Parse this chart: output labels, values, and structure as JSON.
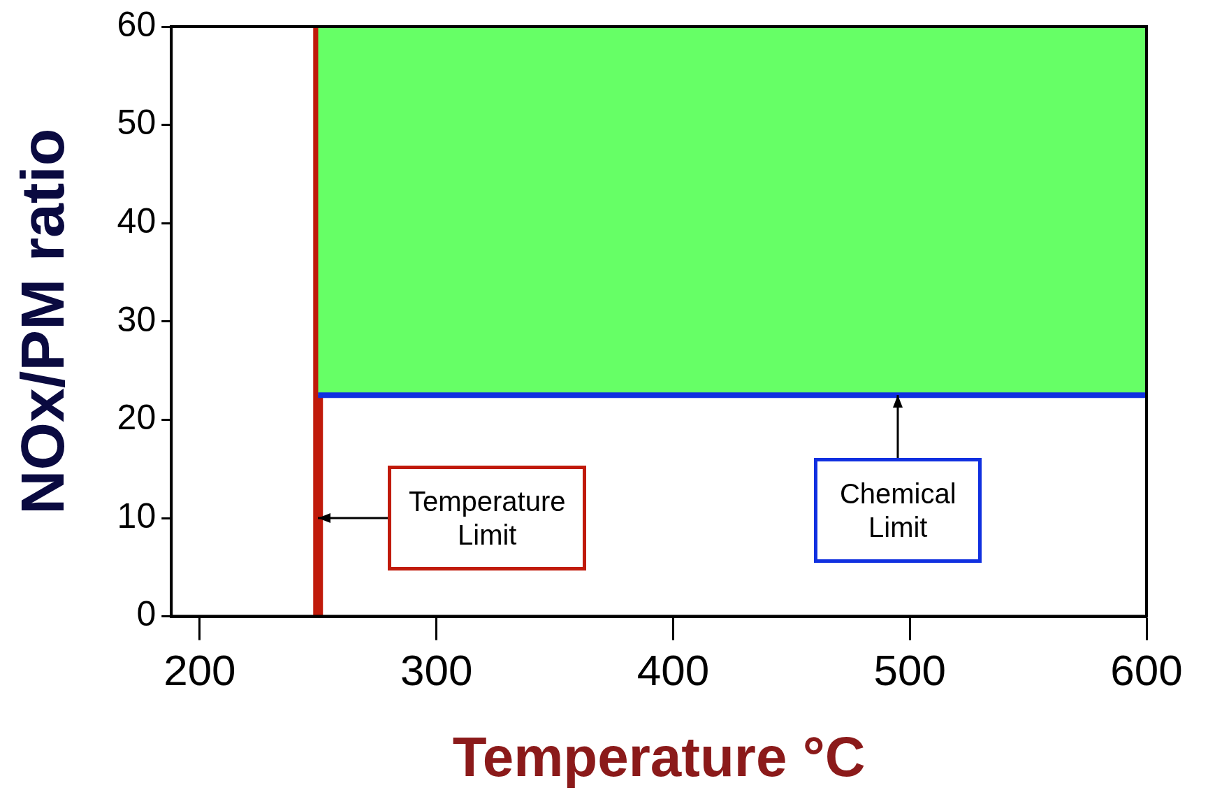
{
  "chart_data": {
    "type": "line",
    "xlabel": "Temperature °C",
    "ylabel": "NOx/PM ratio",
    "xlim": [
      188,
      600
    ],
    "xticks": [
      200,
      300,
      400,
      500,
      600
    ],
    "ylim": [
      0,
      60
    ],
    "yticks": [
      0,
      10,
      20,
      30,
      40,
      50,
      60
    ],
    "grid": false,
    "legend": false,
    "marker": "none",
    "x": [
      250,
      600
    ],
    "series": [
      {
        "type": "area",
        "color": "#66ff66",
        "values": [
          60,
          60
        ]
      },
      {
        "type": "line",
        "color": "#1030e0",
        "values": [
          22.5,
          22.5
        ]
      }
    ],
    "ref_lines": [
      {
        "axis": "x",
        "value": 250,
        "color": "#c01a0a"
      }
    ],
    "annotations": [
      {
        "text": "Temperature Limit",
        "x": 250,
        "y": 10
      },
      {
        "text": "Chemical Limit",
        "x": 495,
        "y": 22.5
      }
    ]
  }
}
